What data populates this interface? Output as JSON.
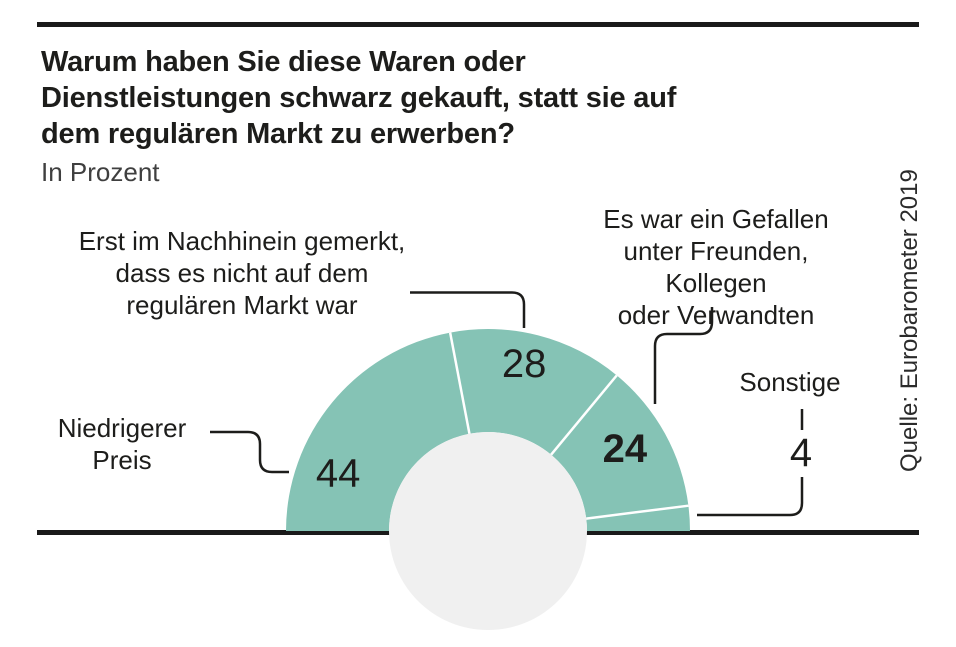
{
  "header": {
    "title": "Warum haben Sie diese Waren oder\nDienstleistungen schwarz gekauft, statt sie auf\ndem regulären Markt zu erwerben?",
    "subtitle": "In Prozent"
  },
  "annotations": {
    "label_preis": "Niedrigerer\nPreis",
    "label_erst": "Erst im Nachhinein gemerkt,\ndass es nicht auf dem\nregulären Markt war",
    "label_gefallen": "Es war ein Gefallen\nunter Freunden, Kollegen\noder Verwandten",
    "label_sonstige": "Sonstige"
  },
  "source": "Quelle: Eurobarometer 2019",
  "colors": {
    "segment_fill": "#85c3b5",
    "hole_fill": "#f0f0f0",
    "ink": "#1d1d1b",
    "divider": "#ffffff"
  },
  "chart_data": {
    "type": "pie",
    "variant": "half-donut",
    "title": "Warum haben Sie diese Waren oder Dienstleistungen schwarz gekauft, statt sie auf dem regulären Markt zu erwerben?",
    "unit": "Prozent",
    "categories": [
      "Niedrigerer Preis",
      "Erst im Nachhinein gemerkt, dass es nicht auf dem regulären Markt war",
      "Es war ein Gefallen unter Freunden, Kollegen oder Verwandten",
      "Sonstige"
    ],
    "values": [
      44,
      28,
      24,
      4
    ],
    "total": 100,
    "legend_position": "none",
    "source": "Quelle: Eurobarometer 2019"
  }
}
